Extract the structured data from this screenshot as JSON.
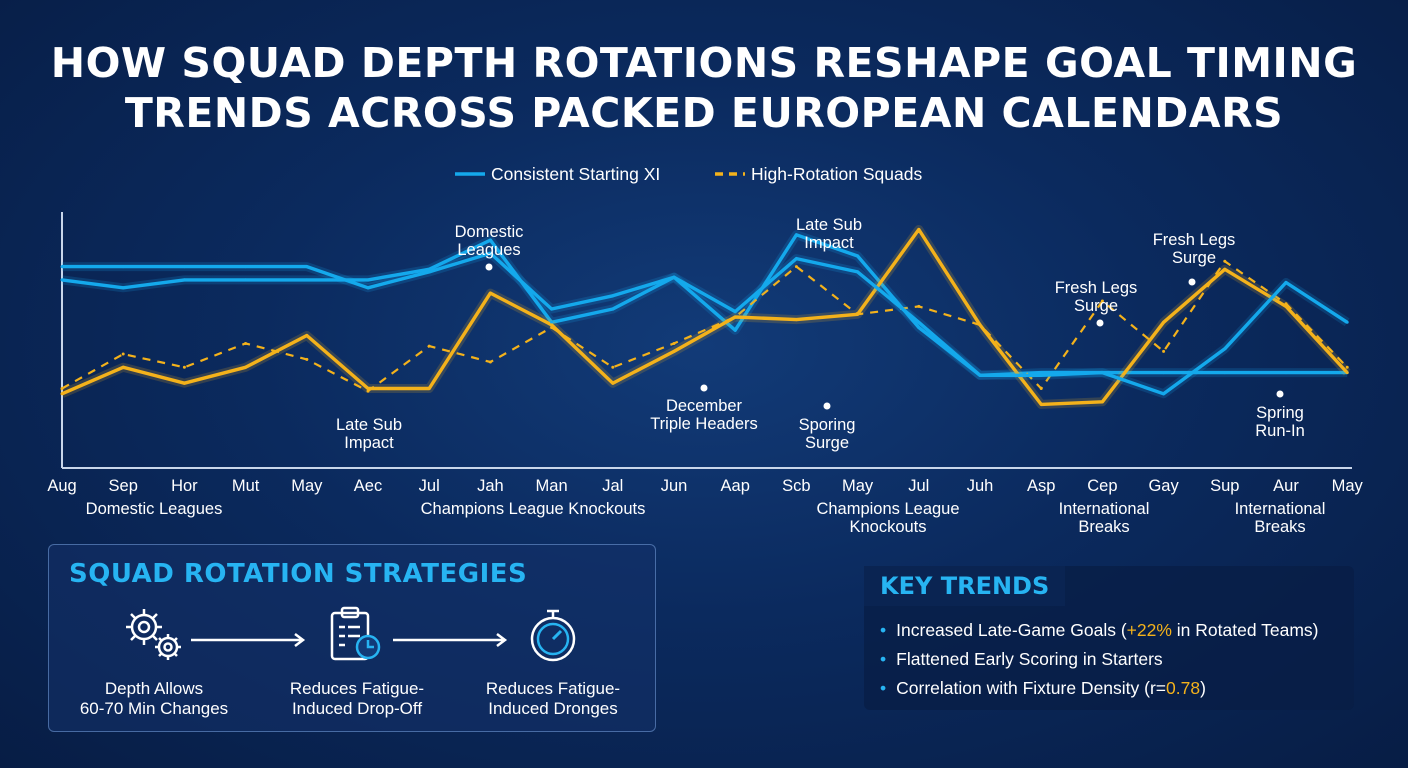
{
  "title_lines": [
    "HOW SQUAD DEPTH ROTATIONS RESHAPE GOAL TIMING",
    "TRENDS ACROSS PACKED EUROPEAN CALENDARS"
  ],
  "colors": {
    "consistent": "#14a9ec",
    "rotation": "#f4b21b",
    "accent": "#27b4f2"
  },
  "chart_data": {
    "type": "line",
    "title": "HOW SQUAD DEPTH ROTATIONS RESHAPE GOAL TIMING TRENDS ACROSS PACKED EUROPEAN CALENDARS",
    "categories": [
      "Aug",
      "Sep",
      "Hor",
      "Mut",
      "May",
      "Aec",
      "Jul",
      "Jah",
      "Man",
      "Jal",
      "Jun",
      "Aap",
      "Scb",
      "May",
      "Jul",
      "Juh",
      "Asp",
      "Cep",
      "Gay",
      "Sup",
      "Aur",
      "May"
    ],
    "ylim": [
      0,
      100
    ],
    "grid": false,
    "legend_position": "top-center",
    "legend": [
      {
        "label": "Consistent Starting XI",
        "style": "solid",
        "color": "#14a9ec"
      },
      {
        "label": "High-Rotation Squads",
        "style": "dashed",
        "color": "#f4b21b"
      }
    ],
    "series": [
      {
        "name": "Consistent Starting XI",
        "style": "solid",
        "color": "#14a9ec",
        "values": [
          71,
          68,
          71,
          71,
          71,
          71,
          75,
          86,
          55,
          60,
          72,
          52,
          88,
          80,
          53,
          35,
          36,
          36,
          36,
          36,
          36,
          36
        ]
      },
      {
        "name": "High-Rotation Squads",
        "style": "solid",
        "color": "#f4b21b",
        "values": [
          28,
          38,
          32,
          38,
          50,
          30,
          30,
          66,
          54,
          32,
          44,
          57,
          56,
          58,
          90,
          54,
          24,
          25,
          55,
          75,
          61,
          36
        ]
      },
      {
        "name": "High-Rotation Squads",
        "style": "dashed",
        "color": "#f4b21b",
        "values": [
          30,
          43,
          38,
          47,
          41,
          29,
          46,
          40,
          53,
          38,
          47,
          57,
          76,
          58,
          61,
          54,
          30,
          63,
          44,
          78,
          62,
          38
        ]
      },
      {
        "name": "Consistent Starting XI",
        "style": "solid",
        "color": "#14a9ec",
        "values": [
          76,
          76,
          76,
          76,
          76,
          68,
          74,
          81,
          60,
          65,
          72,
          59,
          79,
          74,
          55,
          35,
          35,
          36,
          28,
          45,
          70,
          55
        ]
      }
    ],
    "annotations": [
      {
        "label": "Domestic Leagues",
        "category_index": 7
      },
      {
        "label": "Late Sub Impact",
        "category_index": 5
      },
      {
        "label": "December Triple Headers",
        "category_index": 10
      },
      {
        "label": "Late Sub Impact",
        "category_index": 12
      },
      {
        "label": "Sporing Surge",
        "category_index": 12
      },
      {
        "label": "Fresh Legs Surge",
        "category_index": 17
      },
      {
        "label": "Fresh Legs Surge",
        "category_index": 19
      },
      {
        "label": "Spring Run-In",
        "category_index": 20
      }
    ],
    "period_labels": [
      "Domestic Leagues",
      "Champions League Knockouts",
      "Champions League Knockouts",
      "International Breaks",
      "International Breaks"
    ]
  },
  "strategies": {
    "title": "SQUAD ROTATION STRATEGIES",
    "steps": [
      {
        "icon": "gears-icon",
        "line1": "Depth Allows",
        "line2": "60-70 Min Changes"
      },
      {
        "icon": "clipboard-clock-icon",
        "line1": "Reduces Fatigue-",
        "line2": "Induced Drop-Off"
      },
      {
        "icon": "stopwatch-icon",
        "line1": "Reduces Fatigue-",
        "line2": "Induced Dronges"
      }
    ]
  },
  "key_trends": {
    "title": "KEY TRENDS",
    "items": [
      {
        "pre": "Increased Late-Game Goals (",
        "hl": "+22%",
        "post": " in Rotated Teams)"
      },
      {
        "pre": "Flattened Early Scoring in Starters",
        "hl": "",
        "post": ""
      },
      {
        "pre": "Correlation with Fixture Density (r=",
        "hl": "0.78",
        "post": ")"
      }
    ]
  }
}
